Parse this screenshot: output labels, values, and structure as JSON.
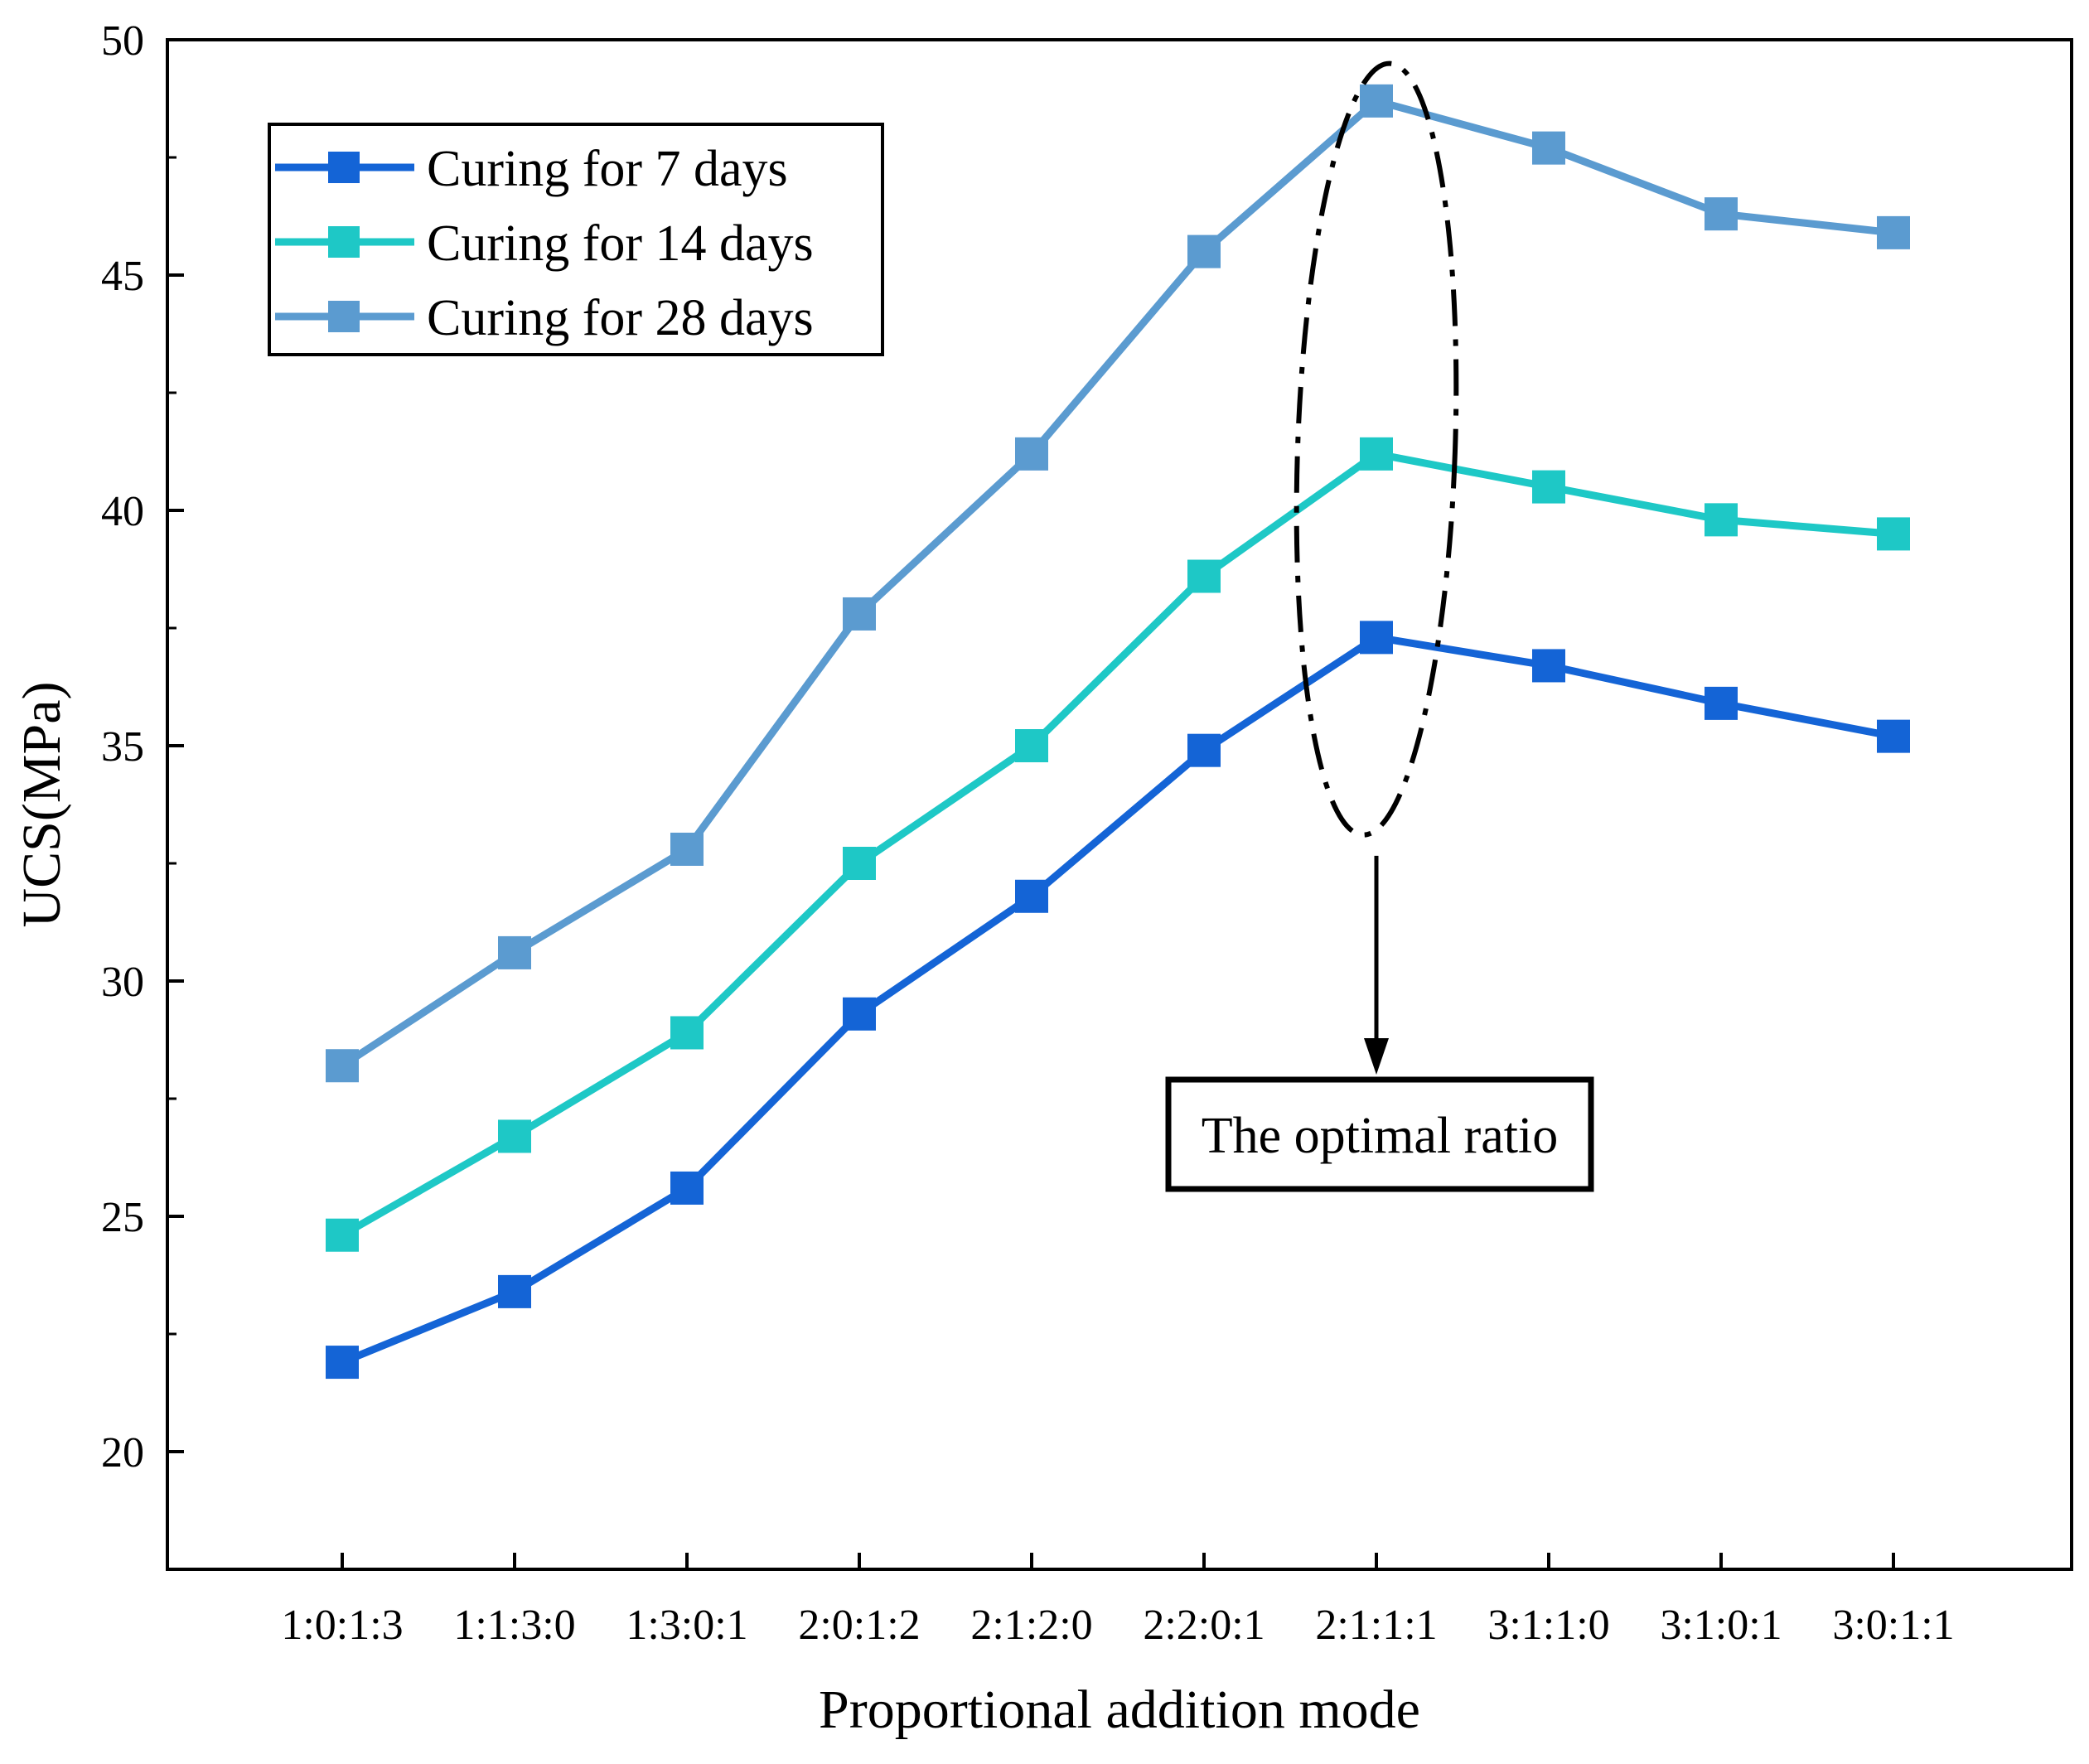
{
  "chart_data": {
    "type": "line",
    "title": "",
    "xlabel": "Proportional addition mode",
    "ylabel": "UCS(MPa)",
    "ylim": [
      17.5,
      50
    ],
    "yticks": [
      20,
      25,
      30,
      35,
      40,
      45,
      50
    ],
    "grid": false,
    "legend_position": "top-left",
    "categories": [
      "1:0:1:3",
      "1:1:3:0",
      "1:3:0:1",
      "2:0:1:2",
      "2:1:2:0",
      "2:2:0:1",
      "2:1:1:1",
      "3:1:1:0",
      "3:1:0:1",
      "3:0:1:1"
    ],
    "series": [
      {
        "name": "Curing for 7 days",
        "color": "#1464d6",
        "values": [
          21.9,
          23.4,
          25.6,
          29.3,
          31.8,
          34.9,
          37.3,
          36.7,
          35.9,
          35.2
        ]
      },
      {
        "name": "Curing for 14 days",
        "color": "#1ec8c6",
        "values": [
          24.6,
          26.7,
          28.9,
          32.5,
          35.0,
          38.6,
          41.2,
          40.5,
          39.8,
          39.5
        ]
      },
      {
        "name": "Curing for 28 days",
        "color": "#5b9bd0",
        "values": [
          28.2,
          30.6,
          32.8,
          37.8,
          41.2,
          45.5,
          48.7,
          47.7,
          46.3,
          45.9
        ]
      }
    ],
    "annotation": {
      "text": "The optimal ratio",
      "target_category": "2:1:1:1"
    }
  }
}
